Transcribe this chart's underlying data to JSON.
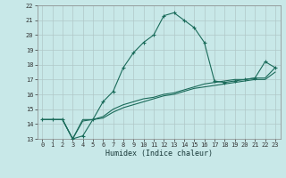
{
  "xlabel": "Humidex (Indice chaleur)",
  "ylabel": "",
  "bg_color": "#c8e8e8",
  "grid_color": "#b0c8c8",
  "line_color": "#1a6b5a",
  "xlim": [
    -0.5,
    23.5
  ],
  "ylim": [
    13,
    22
  ],
  "xticks": [
    0,
    1,
    2,
    3,
    4,
    5,
    6,
    7,
    8,
    9,
    10,
    11,
    12,
    13,
    14,
    15,
    16,
    17,
    18,
    19,
    20,
    21,
    22,
    23
  ],
  "yticks": [
    13,
    14,
    15,
    16,
    17,
    18,
    19,
    20,
    21,
    22
  ],
  "line1_x": [
    0,
    1,
    2,
    3,
    4,
    5,
    6,
    7,
    8,
    9,
    10,
    11,
    12,
    13,
    14,
    15,
    16,
    17,
    18,
    19,
    20,
    21,
    22,
    23
  ],
  "line1_y": [
    14.3,
    14.3,
    14.3,
    13.0,
    13.2,
    14.3,
    15.5,
    16.2,
    17.8,
    18.8,
    19.5,
    20.0,
    21.3,
    21.5,
    21.0,
    20.5,
    19.5,
    16.9,
    16.8,
    16.9,
    17.0,
    17.1,
    18.2,
    17.8
  ],
  "line2_x": [
    0,
    1,
    2,
    3,
    4,
    5,
    6,
    7,
    8,
    9,
    10,
    11,
    12,
    13,
    14,
    15,
    16,
    17,
    18,
    19,
    20,
    21,
    22,
    23
  ],
  "line2_y": [
    14.3,
    14.3,
    14.3,
    13.0,
    14.3,
    14.3,
    14.5,
    15.0,
    15.3,
    15.5,
    15.7,
    15.8,
    16.0,
    16.1,
    16.3,
    16.5,
    16.7,
    16.8,
    16.9,
    17.0,
    17.0,
    17.1,
    17.1,
    17.8
  ],
  "line3_x": [
    0,
    1,
    2,
    3,
    4,
    5,
    6,
    7,
    8,
    9,
    10,
    11,
    12,
    13,
    14,
    15,
    16,
    17,
    18,
    19,
    20,
    21,
    22,
    23
  ],
  "line3_y": [
    14.3,
    14.3,
    14.3,
    13.0,
    14.2,
    14.3,
    14.4,
    14.8,
    15.1,
    15.3,
    15.5,
    15.7,
    15.9,
    16.0,
    16.2,
    16.4,
    16.5,
    16.6,
    16.7,
    16.8,
    16.9,
    17.0,
    17.0,
    17.5
  ],
  "xlabel_fontsize": 6,
  "tick_fontsize": 5
}
